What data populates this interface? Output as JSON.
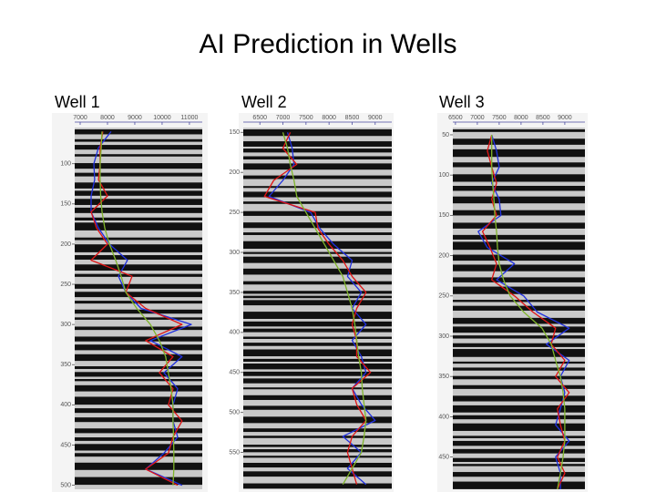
{
  "title": "AI Prediction in Wells",
  "chart_data": [
    {
      "type": "line",
      "title": "Well 1",
      "yaxis_inverted": true,
      "xlim": [
        6800,
        11470
      ],
      "xticks": [
        7000,
        8000,
        9000,
        10000,
        11000
      ],
      "ylim": [
        55,
        505
      ],
      "yticks": [
        100,
        150,
        200,
        250,
        300,
        350,
        400,
        450,
        500
      ],
      "y": [
        60,
        80,
        100,
        120,
        140,
        160,
        180,
        200,
        220,
        240,
        260,
        280,
        300,
        320,
        340,
        360,
        380,
        400,
        420,
        440,
        460,
        480,
        500
      ],
      "series": [
        {
          "name": "Blue",
          "color": "#1f2fe0",
          "values": [
            8130,
            7670,
            7500,
            7530,
            7400,
            7400,
            7670,
            8070,
            8730,
            8400,
            8670,
            9230,
            11070,
            9570,
            10730,
            10070,
            10570,
            10400,
            10400,
            10570,
            10070,
            9400,
            10730
          ]
        },
        {
          "name": "Red",
          "color": "#e01414",
          "values": [
            7830,
            7730,
            7730,
            7670,
            8000,
            7400,
            7600,
            8000,
            7400,
            8900,
            8670,
            9400,
            10730,
            9400,
            10400,
            9900,
            10400,
            10230,
            10730,
            10400,
            10230,
            9400,
            10570
          ]
        },
        {
          "name": "Green",
          "color": "#7fb52a",
          "values": [
            7800,
            7770,
            7730,
            7730,
            7750,
            7800,
            7900,
            8070,
            8300,
            8500,
            8670,
            9070,
            9570,
            9900,
            10130,
            10230,
            10330,
            10400,
            10400,
            10420,
            10430,
            10430,
            10400
          ]
        }
      ]
    },
    {
      "type": "line",
      "title": "Well 2",
      "yaxis_inverted": true,
      "xlim": [
        6140,
        9360
      ],
      "xticks": [
        6500,
        7000,
        7500,
        8000,
        8500,
        9000
      ],
      "ylim": [
        144,
        596
      ],
      "yticks": [
        150,
        200,
        250,
        300,
        350,
        400,
        450,
        500,
        550
      ],
      "y": [
        150,
        170,
        190,
        210,
        230,
        250,
        270,
        290,
        310,
        330,
        350,
        370,
        390,
        410,
        430,
        450,
        470,
        490,
        510,
        530,
        550,
        570,
        590
      ],
      "series": [
        {
          "name": "Blue",
          "color": "#1f2fe0",
          "values": [
            7100,
            7200,
            7240,
            7000,
            6700,
            7600,
            7800,
            8100,
            8500,
            8400,
            8700,
            8500,
            8800,
            8500,
            8700,
            8800,
            8500,
            8700,
            9000,
            8300,
            8700,
            8400,
            8800
          ]
        },
        {
          "name": "Red",
          "color": "#e01414",
          "values": [
            7160,
            7000,
            7300,
            6800,
            6600,
            7700,
            7760,
            8000,
            8300,
            8500,
            8800,
            8600,
            8500,
            8600,
            8600,
            8900,
            8500,
            8600,
            8800,
            8500,
            8400,
            8500,
            8600
          ]
        },
        {
          "name": "Green",
          "color": "#7fb52a",
          "values": [
            7000,
            7100,
            7160,
            7240,
            7300,
            7500,
            7700,
            7900,
            8100,
            8300,
            8400,
            8500,
            8560,
            8600,
            8640,
            8700,
            8720,
            8760,
            8800,
            8760,
            8700,
            8500,
            8300
          ]
        }
      ]
    },
    {
      "type": "line",
      "title": "Well 3",
      "yaxis_inverted": true,
      "xlim": [
        6440,
        9460
      ],
      "xticks": [
        6500,
        7000,
        7500,
        8000,
        8500,
        9000
      ],
      "ylim": [
        41,
        490
      ],
      "yticks": [
        50,
        100,
        150,
        200,
        250,
        300,
        350,
        400,
        450
      ],
      "y": [
        50,
        70,
        90,
        110,
        130,
        150,
        170,
        190,
        210,
        230,
        250,
        270,
        290,
        310,
        330,
        350,
        370,
        390,
        410,
        430,
        450,
        470,
        490
      ],
      "series": [
        {
          "name": "Blue",
          "color": "#1f2fe0",
          "values": [
            7330,
            7440,
            7500,
            7330,
            7500,
            7540,
            7020,
            7230,
            7850,
            7440,
            8060,
            8370,
            9100,
            8580,
            9100,
            8900,
            9000,
            8900,
            8790,
            9100,
            8790,
            8900,
            8900
          ]
        },
        {
          "name": "Red",
          "color": "#e01414",
          "values": [
            7330,
            7230,
            7330,
            7440,
            7330,
            7440,
            7120,
            7290,
            7440,
            7330,
            7850,
            8270,
            8790,
            8690,
            9000,
            8790,
            9100,
            8830,
            8900,
            9000,
            8830,
            9000,
            8830
          ]
        },
        {
          "name": "Green",
          "color": "#7fb52a",
          "values": [
            7330,
            7330,
            7330,
            7350,
            7380,
            7400,
            7440,
            7460,
            7500,
            7600,
            7750,
            8060,
            8480,
            8690,
            8790,
            8900,
            8960,
            9000,
            9000,
            9000,
            8960,
            8900,
            8830
          ]
        }
      ]
    }
  ]
}
